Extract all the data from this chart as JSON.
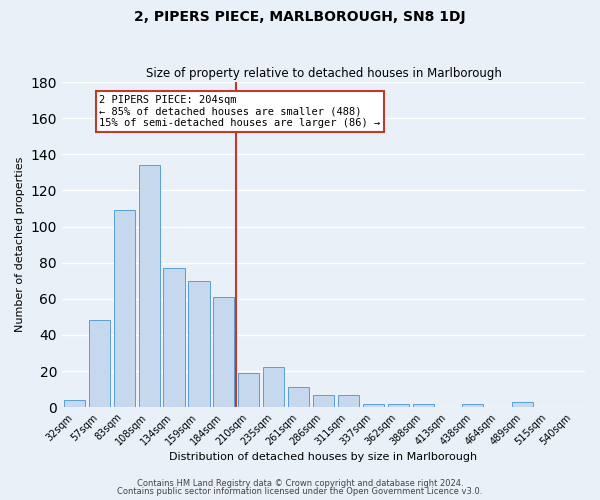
{
  "title": "2, PIPERS PIECE, MARLBOROUGH, SN8 1DJ",
  "subtitle": "Size of property relative to detached houses in Marlborough",
  "xlabel": "Distribution of detached houses by size in Marlborough",
  "ylabel": "Number of detached properties",
  "bar_labels": [
    "32sqm",
    "57sqm",
    "83sqm",
    "108sqm",
    "134sqm",
    "159sqm",
    "184sqm",
    "210sqm",
    "235sqm",
    "261sqm",
    "286sqm",
    "311sqm",
    "337sqm",
    "362sqm",
    "388sqm",
    "413sqm",
    "438sqm",
    "464sqm",
    "489sqm",
    "515sqm",
    "540sqm"
  ],
  "bar_values": [
    4,
    48,
    109,
    134,
    77,
    70,
    61,
    19,
    22,
    11,
    7,
    7,
    2,
    2,
    2,
    0,
    2,
    0,
    3,
    0,
    0
  ],
  "bar_color": "#c5d8ed",
  "bar_edge_color": "#5a9fd4",
  "vline_index": 7,
  "vline_color": "#c0392b",
  "annotation_title": "2 PIPERS PIECE: 204sqm",
  "annotation_line1": "← 85% of detached houses are smaller (488)",
  "annotation_line2": "15% of semi-detached houses are larger (86) →",
  "annotation_box_color": "#c0392b",
  "ylim": [
    0,
    180
  ],
  "yticks": [
    0,
    20,
    40,
    60,
    80,
    100,
    120,
    140,
    160,
    180
  ],
  "footer1": "Contains HM Land Registry data © Crown copyright and database right 2024.",
  "footer2": "Contains public sector information licensed under the Open Government Licence v3.0.",
  "bg_color": "#eaf0f8",
  "grid_color": "#ffffff",
  "title_fontsize": 10,
  "subtitle_fontsize": 8.5,
  "ylabel_fontsize": 8,
  "xlabel_fontsize": 8,
  "tick_fontsize": 7,
  "ann_fontsize": 7.5
}
